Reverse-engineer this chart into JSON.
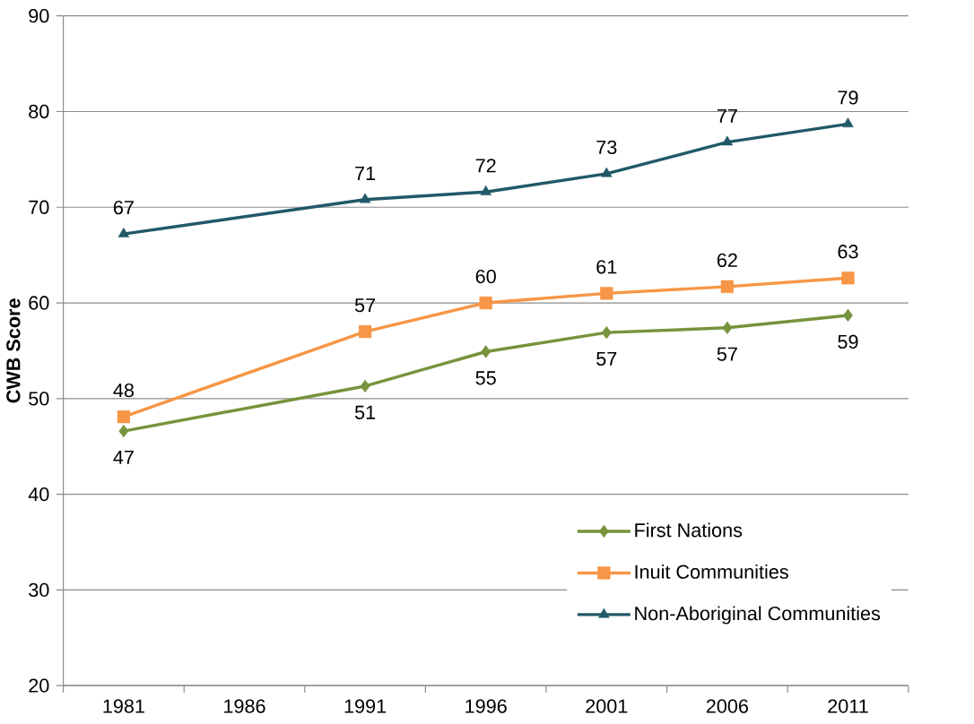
{
  "chart_data": {
    "type": "line",
    "ylabel": "CWB Score",
    "categories": [
      "1981",
      "1986",
      "1991",
      "1996",
      "2001",
      "2006",
      "2011"
    ],
    "series": [
      {
        "name": "First Nations",
        "color": "#77933c",
        "marker": "diamond",
        "values": [
          46.6,
          null,
          51.3,
          54.9,
          56.9,
          57.4,
          58.7
        ],
        "value_labels": [
          "47",
          null,
          "51",
          "55",
          "57",
          "57",
          "59"
        ]
      },
      {
        "name": "Inuit Communities",
        "color": "#f79646",
        "marker": "square",
        "values": [
          48.1,
          null,
          57.0,
          60.0,
          61.0,
          61.7,
          62.6
        ],
        "value_labels": [
          "48",
          null,
          "57",
          "60",
          "61",
          "62",
          "63"
        ]
      },
      {
        "name": "Non-Aboriginal Communities",
        "color": "#215968",
        "marker": "triangle",
        "values": [
          67.2,
          null,
          70.8,
          71.6,
          73.5,
          76.8,
          78.7
        ],
        "value_labels": [
          "67",
          null,
          "71",
          "72",
          "73",
          "77",
          "79"
        ]
      }
    ],
    "ylim": [
      20,
      90
    ],
    "yticks": [
      20,
      30,
      40,
      50,
      60,
      70,
      80,
      90
    ],
    "grid": "y",
    "legend": "bottom right",
    "line_style": "solid"
  }
}
